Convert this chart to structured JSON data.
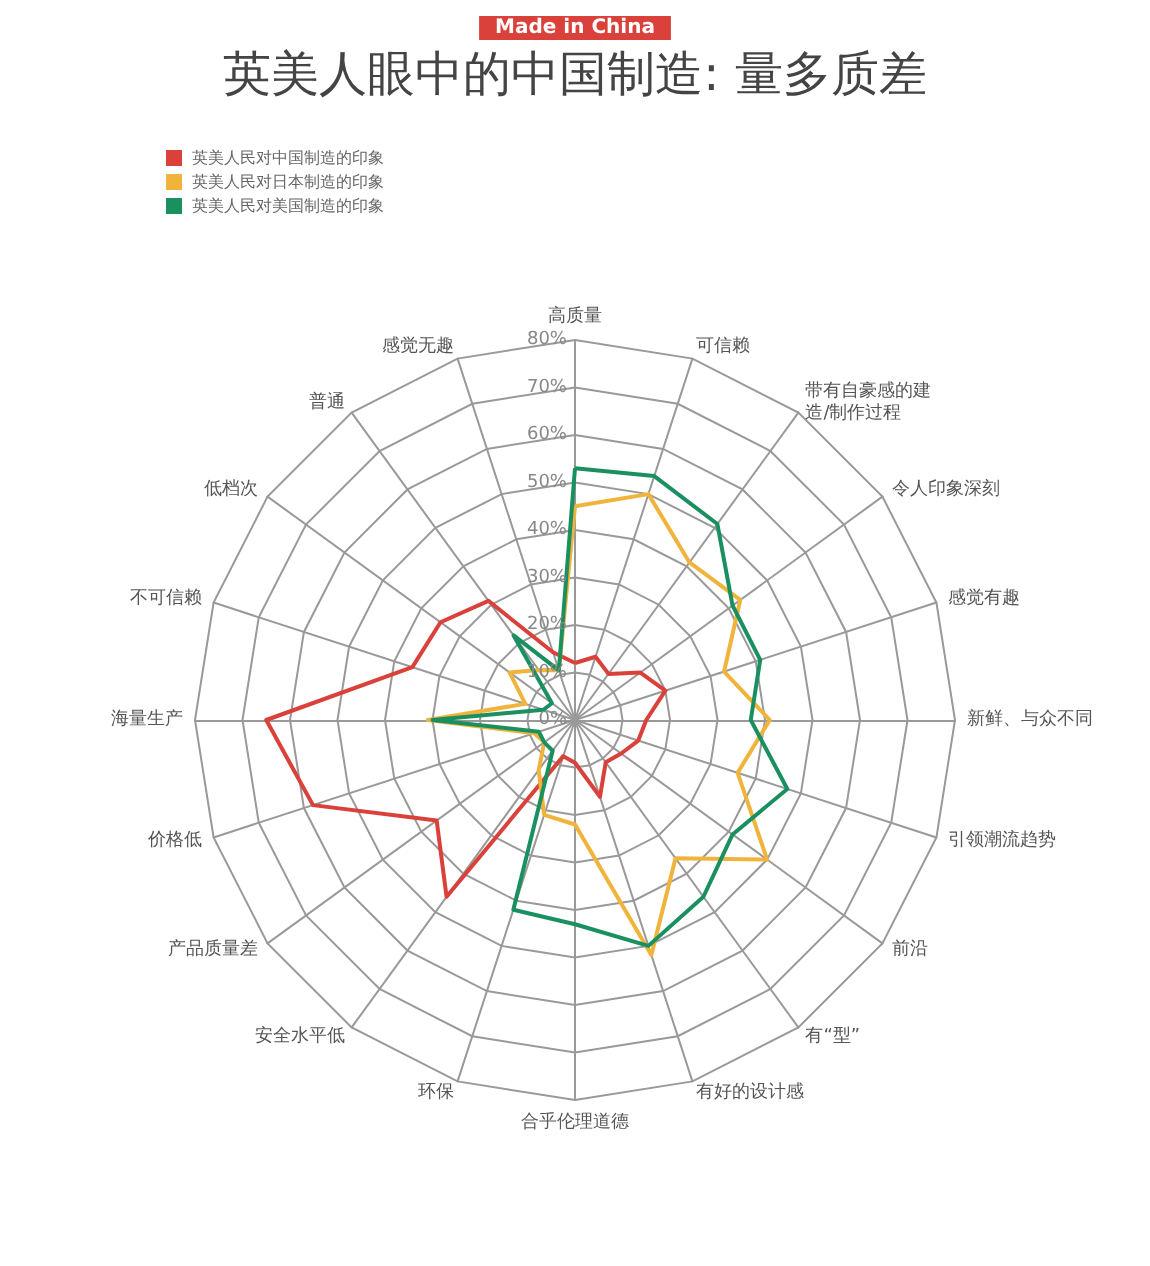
{
  "chart_data": {
    "type": "radar",
    "title": "英美人眼中的中国制造: 量多质差",
    "subtitle": "Made in China",
    "categories": [
      "高质量",
      "可信赖",
      "带有自豪感的建造/制作过程",
      "令人印象深刻",
      "感觉有趣",
      "新鲜、与众不同",
      "引领潮流趋势",
      "前沿",
      "有“型”",
      "有好的设计感",
      "合乎伦理道德",
      "环保",
      "安全水平低",
      "产品质量差",
      "价格低",
      "海量生产",
      "不可信赖",
      "低档次",
      "普通",
      "感觉无趣"
    ],
    "series": [
      {
        "name": "英美人民对中国制造的印象",
        "color": "#d9413a",
        "values": [
          12,
          14,
          12,
          17,
          20,
          15,
          14,
          12,
          11,
          17,
          9,
          8,
          46,
          36,
          58,
          65,
          36,
          35,
          31,
          15
        ]
      },
      {
        "name": "英美人民对日本制造的印象",
        "color": "#f0b43c",
        "values": [
          45,
          50,
          41,
          43,
          33,
          41,
          36,
          50,
          36,
          52,
          22,
          21,
          13,
          8,
          9,
          31,
          11,
          17,
          13,
          11
        ]
      },
      {
        "name": "英美人民对美国制造的印象",
        "color": "#1a9060",
        "values": [
          53,
          54,
          51,
          41,
          41,
          37,
          47,
          41,
          46,
          50,
          43,
          42,
          8,
          8,
          8,
          30,
          7,
          6,
          22,
          11
        ]
      }
    ],
    "ylim": [
      0,
      80
    ],
    "yticks": [
      {
        "value": 0,
        "label": "0%"
      },
      {
        "value": 10,
        "label": "10%"
      },
      {
        "value": 20,
        "label": "20%"
      },
      {
        "value": 30,
        "label": "30%"
      },
      {
        "value": 40,
        "label": "40%"
      },
      {
        "value": 50,
        "label": "50%"
      },
      {
        "value": 60,
        "label": "60%"
      },
      {
        "value": 70,
        "label": "70%"
      },
      {
        "value": 80,
        "label": "80%"
      }
    ],
    "legend": "top left",
    "grid": true,
    "marker": "none",
    "line_style": "solid"
  }
}
